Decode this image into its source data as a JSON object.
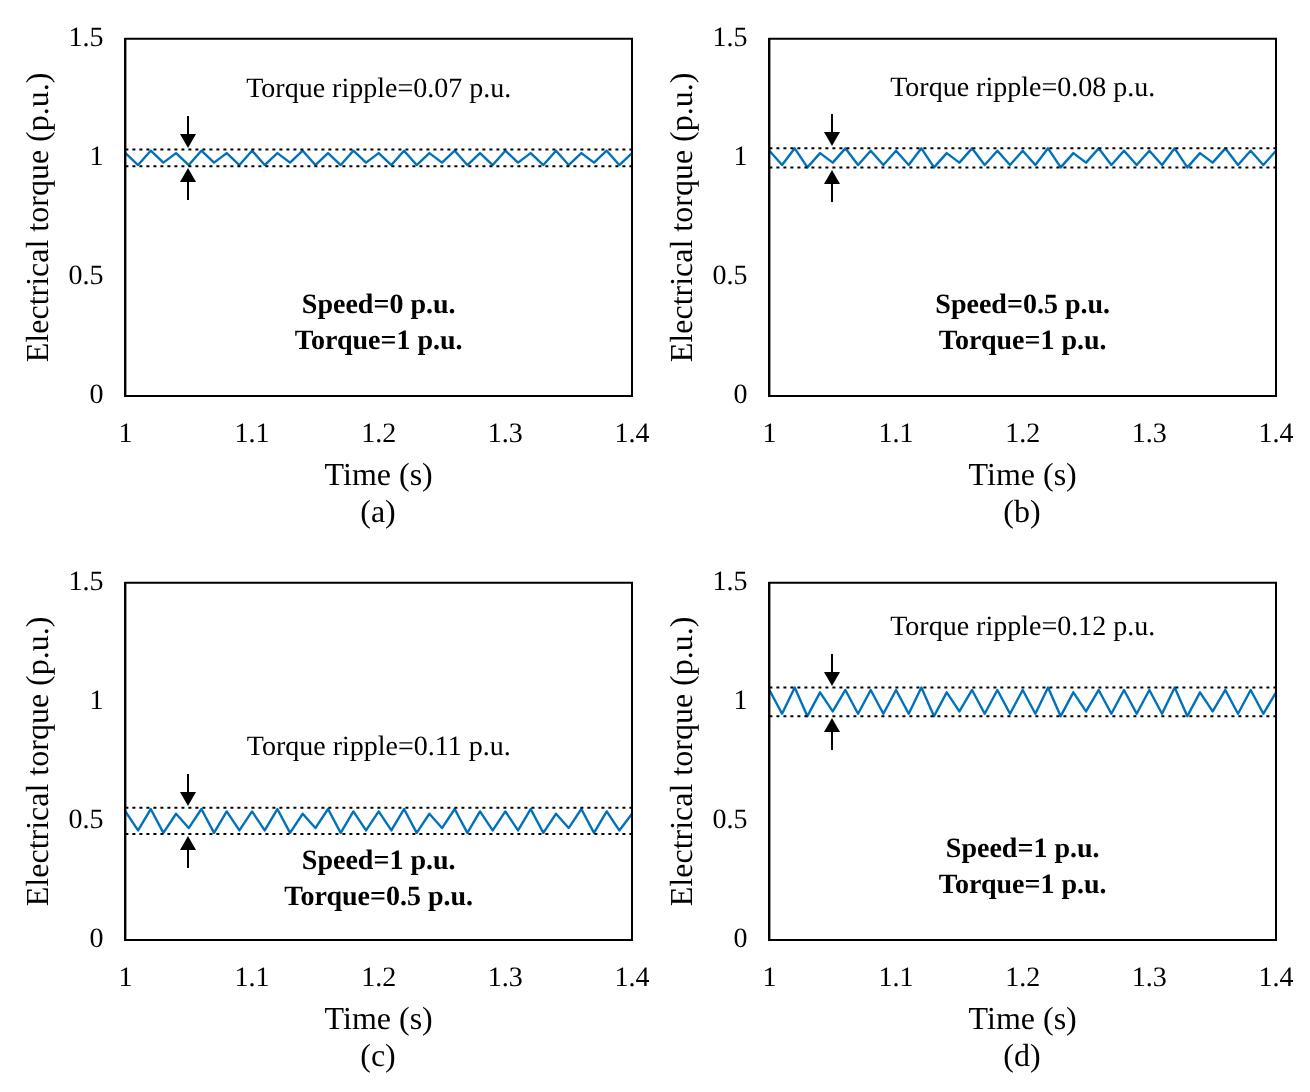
{
  "chart_data": [
    {
      "type": "line",
      "xlabel": "Time (s)",
      "ylabel": "Electrical torque (p.u.)",
      "xlim": [
        1,
        1.4
      ],
      "xticks": [
        1,
        1.1,
        1.2,
        1.3,
        1.4
      ],
      "ylim": [
        0,
        1.5
      ],
      "yticks": [
        0,
        0.5,
        1,
        1.5
      ],
      "grid": false,
      "legend": false,
      "marker": "none",
      "line_style": "solid",
      "x": [
        1,
        1.01,
        1.02,
        1.03,
        1.04,
        1.05,
        1.06,
        1.07,
        1.08,
        1.09,
        1.1,
        1.11,
        1.12,
        1.13,
        1.14,
        1.15,
        1.16,
        1.17,
        1.18,
        1.19,
        1.2,
        1.21,
        1.22,
        1.23,
        1.24,
        1.25,
        1.26,
        1.27,
        1.28,
        1.29,
        1.3,
        1.31,
        1.32,
        1.33,
        1.34,
        1.35,
        1.36,
        1.37,
        1.38,
        1.39,
        1.4
      ],
      "series": [
        {
          "color": "#0072bd",
          "values": [
            1.02,
            0.97,
            1.03,
            0.98,
            1.02,
            0.97,
            1.03,
            0.98,
            1.02,
            0.97,
            1.03,
            0.97,
            1.02,
            0.98,
            1.03,
            0.97,
            1.02,
            0.97,
            1.03,
            0.98,
            1.02,
            0.97,
            1.03,
            0.97,
            1.02,
            0.98,
            1.03,
            0.97,
            1.02,
            0.97,
            1.03,
            0.98,
            1.02,
            0.97,
            1.03,
            0.97,
            1.02,
            0.98,
            1.03,
            0.97,
            1.02
          ]
        }
      ],
      "ref_lines": [
        {
          "axis": "y",
          "value": 1.035,
          "color": "#000000",
          "line_style": "dotted"
        },
        {
          "axis": "y",
          "value": 0.965,
          "color": "#000000",
          "line_style": "dotted"
        }
      ],
      "annotations": [
        "Torque ripple=0.07 p.u.",
        "Speed=0 p.u.",
        "Torque=1 p.u.",
        "(a)"
      ]
    },
    {
      "type": "line",
      "xlabel": "Time (s)",
      "ylabel": "Electrical torque (p.u.)",
      "xlim": [
        1,
        1.4
      ],
      "xticks": [
        1,
        1.1,
        1.2,
        1.3,
        1.4
      ],
      "ylim": [
        0,
        1.5
      ],
      "yticks": [
        0,
        0.5,
        1,
        1.5
      ],
      "grid": false,
      "legend": false,
      "marker": "none",
      "line_style": "solid",
      "x": [
        1,
        1.01,
        1.02,
        1.03,
        1.04,
        1.05,
        1.06,
        1.07,
        1.08,
        1.09,
        1.1,
        1.11,
        1.12,
        1.13,
        1.14,
        1.15,
        1.16,
        1.17,
        1.18,
        1.19,
        1.2,
        1.21,
        1.22,
        1.23,
        1.24,
        1.25,
        1.26,
        1.27,
        1.28,
        1.29,
        1.3,
        1.31,
        1.32,
        1.33,
        1.34,
        1.35,
        1.36,
        1.37,
        1.38,
        1.39,
        1.4
      ],
      "series": [
        {
          "color": "#0072bd",
          "values": [
            1.03,
            0.97,
            1.04,
            0.96,
            1.02,
            0.98,
            1.04,
            0.97,
            1.03,
            0.97,
            1.03,
            0.97,
            1.04,
            0.96,
            1.02,
            0.98,
            1.04,
            0.97,
            1.03,
            0.97,
            1.03,
            0.97,
            1.04,
            0.96,
            1.02,
            0.98,
            1.04,
            0.97,
            1.03,
            0.97,
            1.03,
            0.97,
            1.04,
            0.96,
            1.02,
            0.98,
            1.04,
            0.97,
            1.03,
            0.97,
            1.03
          ]
        }
      ],
      "ref_lines": [
        {
          "axis": "y",
          "value": 1.04,
          "color": "#000000",
          "line_style": "dotted"
        },
        {
          "axis": "y",
          "value": 0.96,
          "color": "#000000",
          "line_style": "dotted"
        }
      ],
      "annotations": [
        "Torque ripple=0.08 p.u.",
        "Speed=0.5 p.u.",
        "Torque=1 p.u.",
        "(b)"
      ]
    },
    {
      "type": "line",
      "xlabel": "Time (s)",
      "ylabel": "Electrical torque (p.u.)",
      "xlim": [
        1,
        1.4
      ],
      "xticks": [
        1,
        1.1,
        1.2,
        1.3,
        1.4
      ],
      "ylim": [
        0,
        1.5
      ],
      "yticks": [
        0,
        0.5,
        1,
        1.5
      ],
      "grid": false,
      "legend": false,
      "marker": "none",
      "line_style": "solid",
      "x": [
        1,
        1.01,
        1.02,
        1.03,
        1.04,
        1.05,
        1.06,
        1.07,
        1.08,
        1.09,
        1.1,
        1.11,
        1.12,
        1.13,
        1.14,
        1.15,
        1.16,
        1.17,
        1.18,
        1.19,
        1.2,
        1.21,
        1.22,
        1.23,
        1.24,
        1.25,
        1.26,
        1.27,
        1.28,
        1.29,
        1.3,
        1.31,
        1.32,
        1.33,
        1.34,
        1.35,
        1.36,
        1.37,
        1.38,
        1.39,
        1.4
      ],
      "series": [
        {
          "color": "#0072bd",
          "values": [
            0.54,
            0.46,
            0.55,
            0.45,
            0.53,
            0.47,
            0.55,
            0.45,
            0.54,
            0.46,
            0.54,
            0.46,
            0.55,
            0.45,
            0.53,
            0.47,
            0.55,
            0.45,
            0.54,
            0.46,
            0.54,
            0.46,
            0.55,
            0.45,
            0.53,
            0.47,
            0.55,
            0.45,
            0.54,
            0.46,
            0.54,
            0.46,
            0.55,
            0.45,
            0.53,
            0.47,
            0.55,
            0.45,
            0.54,
            0.46,
            0.53
          ]
        }
      ],
      "ref_lines": [
        {
          "axis": "y",
          "value": 0.555,
          "color": "#000000",
          "line_style": "dotted"
        },
        {
          "axis": "y",
          "value": 0.445,
          "color": "#000000",
          "line_style": "dotted"
        }
      ],
      "annotations": [
        "Torque ripple=0.11 p.u.",
        "Speed=1 p.u.",
        "Torque=0.5 p.u.",
        "(c)"
      ]
    },
    {
      "type": "line",
      "xlabel": "Time (s)",
      "ylabel": "Electrical torque (p.u.)",
      "xlim": [
        1,
        1.4
      ],
      "xticks": [
        1,
        1.1,
        1.2,
        1.3,
        1.4
      ],
      "ylim": [
        0,
        1.5
      ],
      "yticks": [
        0,
        0.5,
        1,
        1.5
      ],
      "grid": false,
      "legend": false,
      "marker": "none",
      "line_style": "solid",
      "x": [
        1,
        1.01,
        1.02,
        1.03,
        1.04,
        1.05,
        1.06,
        1.07,
        1.08,
        1.09,
        1.1,
        1.11,
        1.12,
        1.13,
        1.14,
        1.15,
        1.16,
        1.17,
        1.18,
        1.19,
        1.2,
        1.21,
        1.22,
        1.23,
        1.24,
        1.25,
        1.26,
        1.27,
        1.28,
        1.29,
        1.3,
        1.31,
        1.32,
        1.33,
        1.34,
        1.35,
        1.36,
        1.37,
        1.38,
        1.39,
        1.4
      ],
      "series": [
        {
          "color": "#0072bd",
          "values": [
            1.05,
            0.95,
            1.06,
            0.94,
            1.04,
            0.96,
            1.05,
            0.95,
            1.05,
            0.95,
            1.05,
            0.95,
            1.06,
            0.94,
            1.04,
            0.96,
            1.05,
            0.95,
            1.05,
            0.95,
            1.05,
            0.95,
            1.06,
            0.94,
            1.04,
            0.96,
            1.05,
            0.95,
            1.05,
            0.95,
            1.05,
            0.95,
            1.06,
            0.94,
            1.04,
            0.96,
            1.05,
            0.95,
            1.05,
            0.95,
            1.04
          ]
        }
      ],
      "ref_lines": [
        {
          "axis": "y",
          "value": 1.06,
          "color": "#000000",
          "line_style": "dotted"
        },
        {
          "axis": "y",
          "value": 0.94,
          "color": "#000000",
          "line_style": "dotted"
        }
      ],
      "annotations": [
        "Torque ripple=0.12 p.u.",
        "Speed=1 p.u.",
        "Torque=1 p.u.",
        "(d)"
      ]
    }
  ]
}
